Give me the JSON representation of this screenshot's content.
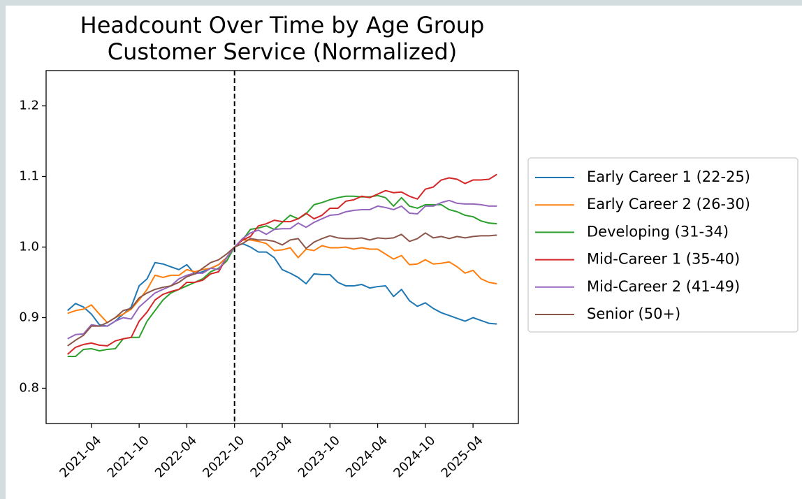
{
  "chart_data": {
    "type": "line",
    "title": "Headcount Over Time by Age Group",
    "subtitle": "Customer Service (Normalized)",
    "x": [
      "2021-01",
      "2021-02",
      "2021-03",
      "2021-04",
      "2021-05",
      "2021-06",
      "2021-07",
      "2021-08",
      "2021-09",
      "2021-10",
      "2021-11",
      "2021-12",
      "2022-01",
      "2022-02",
      "2022-03",
      "2022-04",
      "2022-05",
      "2022-06",
      "2022-07",
      "2022-08",
      "2022-09",
      "2022-10",
      "2022-11",
      "2022-12",
      "2023-01",
      "2023-02",
      "2023-03",
      "2023-04",
      "2023-05",
      "2023-06",
      "2023-07",
      "2023-08",
      "2023-09",
      "2023-10",
      "2023-11",
      "2023-12",
      "2024-01",
      "2024-02",
      "2024-03",
      "2024-04",
      "2024-05",
      "2024-06",
      "2024-07",
      "2024-08",
      "2024-09",
      "2024-10",
      "2024-11",
      "2024-12",
      "2025-01",
      "2025-02",
      "2025-03",
      "2025-04",
      "2025-05",
      "2025-06",
      "2025-07"
    ],
    "series": [
      {
        "name": "Early Career 1 (22-25)",
        "color": "#1f77b4",
        "values": [
          0.91,
          0.92,
          0.915,
          0.905,
          0.89,
          0.888,
          0.895,
          0.905,
          0.915,
          0.945,
          0.955,
          0.978,
          0.976,
          0.972,
          0.968,
          0.975,
          0.962,
          0.965,
          0.97,
          0.975,
          0.985,
          1.0,
          1.005,
          1.0,
          0.993,
          0.993,
          0.985,
          0.968,
          0.963,
          0.957,
          0.948,
          0.962,
          0.961,
          0.961,
          0.95,
          0.945,
          0.945,
          0.947,
          0.942,
          0.944,
          0.945,
          0.93,
          0.94,
          0.924,
          0.916,
          0.921,
          0.913,
          0.907,
          0.903,
          0.899,
          0.895,
          0.9,
          0.896,
          0.892,
          0.891
        ]
      },
      {
        "name": "Early Career 2 (26-30)",
        "color": "#ff7f0e",
        "values": [
          0.906,
          0.91,
          0.912,
          0.918,
          0.905,
          0.893,
          0.9,
          0.905,
          0.912,
          0.925,
          0.94,
          0.96,
          0.957,
          0.96,
          0.96,
          0.968,
          0.965,
          0.968,
          0.97,
          0.975,
          0.985,
          1.0,
          1.01,
          1.01,
          1.008,
          1.005,
          0.995,
          0.996,
          0.999,
          0.985,
          0.997,
          0.995,
          1.002,
          0.999,
          0.999,
          1.0,
          0.997,
          0.999,
          0.997,
          0.997,
          0.99,
          0.983,
          0.988,
          0.975,
          0.976,
          0.982,
          0.976,
          0.977,
          0.979,
          0.972,
          0.963,
          0.967,
          0.955,
          0.95,
          0.948
        ]
      },
      {
        "name": "Developing (31-34)",
        "color": "#2ca02c",
        "values": [
          0.845,
          0.845,
          0.855,
          0.856,
          0.853,
          0.855,
          0.856,
          0.87,
          0.872,
          0.872,
          0.895,
          0.91,
          0.925,
          0.935,
          0.94,
          0.945,
          0.95,
          0.955,
          0.965,
          0.97,
          0.98,
          1.0,
          1.01,
          1.025,
          1.027,
          1.03,
          1.025,
          1.035,
          1.045,
          1.04,
          1.047,
          1.06,
          1.063,
          1.067,
          1.07,
          1.072,
          1.072,
          1.071,
          1.071,
          1.073,
          1.07,
          1.058,
          1.07,
          1.058,
          1.055,
          1.06,
          1.06,
          1.06,
          1.053,
          1.05,
          1.045,
          1.043,
          1.037,
          1.034,
          1.033
        ]
      },
      {
        "name": "Mid-Career 1 (35-40)",
        "color": "#d62728",
        "values": [
          0.848,
          0.858,
          0.862,
          0.864,
          0.861,
          0.86,
          0.867,
          0.87,
          0.872,
          0.895,
          0.908,
          0.925,
          0.933,
          0.937,
          0.94,
          0.95,
          0.95,
          0.953,
          0.962,
          0.965,
          0.985,
          1.0,
          1.01,
          1.015,
          1.03,
          1.033,
          1.038,
          1.036,
          1.036,
          1.04,
          1.048,
          1.04,
          1.045,
          1.055,
          1.055,
          1.065,
          1.067,
          1.072,
          1.07,
          1.075,
          1.08,
          1.077,
          1.078,
          1.072,
          1.068,
          1.082,
          1.085,
          1.095,
          1.098,
          1.096,
          1.09,
          1.095,
          1.095,
          1.096,
          1.103
        ]
      },
      {
        "name": "Mid-Career 2 (41-49)",
        "color": "#9467bd",
        "values": [
          0.87,
          0.876,
          0.877,
          0.89,
          0.888,
          0.888,
          0.895,
          0.9,
          0.898,
          0.915,
          0.925,
          0.935,
          0.94,
          0.945,
          0.955,
          0.96,
          0.963,
          0.963,
          0.97,
          0.968,
          0.985,
          1.0,
          1.012,
          1.02,
          1.024,
          1.018,
          1.025,
          1.026,
          1.026,
          1.034,
          1.028,
          1.035,
          1.04,
          1.045,
          1.046,
          1.05,
          1.052,
          1.053,
          1.053,
          1.058,
          1.056,
          1.053,
          1.058,
          1.048,
          1.047,
          1.058,
          1.058,
          1.063,
          1.066,
          1.062,
          1.061,
          1.061,
          1.06,
          1.058,
          1.058
        ]
      },
      {
        "name": "Senior (50+)",
        "color": "#8c564b",
        "values": [
          0.86,
          0.868,
          0.875,
          0.888,
          0.888,
          0.893,
          0.9,
          0.91,
          0.913,
          0.928,
          0.935,
          0.94,
          0.943,
          0.945,
          0.95,
          0.958,
          0.962,
          0.97,
          0.978,
          0.982,
          0.99,
          1.0,
          1.005,
          1.012,
          1.01,
          1.01,
          1.008,
          1.003,
          1.01,
          1.012,
          0.998,
          1.007,
          1.012,
          1.016,
          1.013,
          1.012,
          1.012,
          1.013,
          1.01,
          1.013,
          1.012,
          1.013,
          1.018,
          1.008,
          1.012,
          1.02,
          1.013,
          1.015,
          1.012,
          1.015,
          1.013,
          1.015,
          1.016,
          1.016,
          1.017
        ]
      }
    ],
    "vline": "2022-10",
    "ylim": [
      0.75,
      1.25
    ],
    "yticks": [
      0.8,
      0.9,
      {
        "value": 1,
        "label": "1.0"
      },
      1.1,
      1.2
    ],
    "xticks": [
      "2021-04",
      "2021-10",
      "2022-04",
      "2022-10",
      "2023-04",
      "2023-10",
      "2024-04",
      "2024-10",
      "2025-04"
    ],
    "legend": "right",
    "grid": false
  }
}
